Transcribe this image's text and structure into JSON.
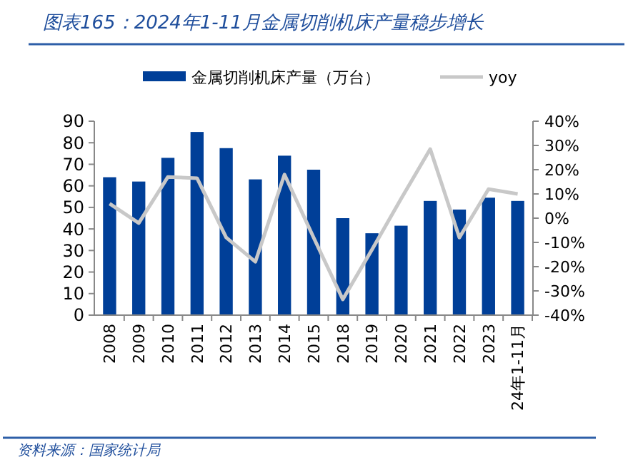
{
  "chart_data": {
    "type": "bar",
    "title": "图表165：2024年1-11月金属切削机床产量稳步增长",
    "categories": [
      "2008",
      "2009",
      "2010",
      "2011",
      "2012",
      "2013",
      "2014",
      "2015",
      "2018",
      "2019",
      "2020",
      "2021",
      "2022",
      "2023",
      "24年1-11月"
    ],
    "series": [
      {
        "name": "金属切削机床产量（万台）",
        "color": "#003f98",
        "values": [
          64,
          62,
          73,
          85,
          77.5,
          63,
          74,
          67.5,
          45,
          38,
          41.5,
          53,
          49,
          54.5,
          53
        ]
      },
      {
        "name": "yoy",
        "type": "line",
        "axis": "y2",
        "color": "#c8c8c8",
        "values": [
          6,
          -2,
          17,
          16.5,
          -8,
          -18,
          18,
          -8,
          -33.5,
          -13,
          8,
          28.5,
          -8,
          12,
          10
        ]
      }
    ],
    "ylim": [
      0,
      90
    ],
    "yticks": [
      0,
      10,
      20,
      30,
      40,
      50,
      60,
      70,
      80,
      90
    ],
    "y2lim": [
      -40,
      40
    ],
    "y2ticks": [
      {
        "value": -40,
        "label": "-40%"
      },
      {
        "value": -30,
        "label": "-30%"
      },
      {
        "value": -20,
        "label": "-20%"
      },
      {
        "value": -10,
        "label": "-10%"
      },
      {
        "value": 0,
        "label": "0%"
      },
      {
        "value": 10,
        "label": "10%"
      },
      {
        "value": 20,
        "label": "20%"
      },
      {
        "value": 30,
        "label": "30%"
      },
      {
        "value": 40,
        "label": "40%"
      }
    ],
    "legend": "top",
    "grid": false,
    "annotations": [
      "资料来源：国家统计局"
    ]
  }
}
